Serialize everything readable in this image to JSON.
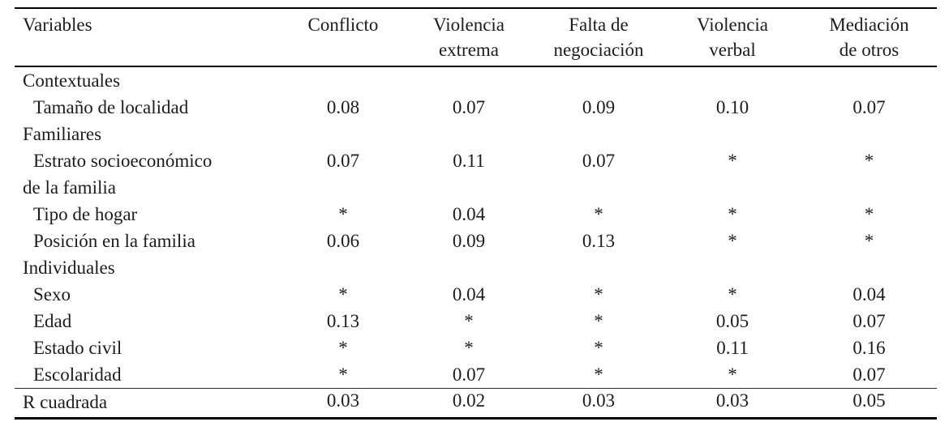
{
  "chart_data": {
    "type": "table",
    "corner_label": "Variables",
    "columns": [
      {
        "line1": "Conflicto",
        "line2": ""
      },
      {
        "line1": "Violencia",
        "line2": "extrema"
      },
      {
        "line1": "Falta de",
        "line2": "negociación"
      },
      {
        "line1": "Violencia",
        "line2": "verbal"
      },
      {
        "line1": "Mediación",
        "line2": "de otros"
      }
    ],
    "rows": [
      {
        "label": "Contextuales",
        "type": "section",
        "values": [
          "",
          "",
          "",
          "",
          ""
        ]
      },
      {
        "label": "Tamaño de localidad",
        "type": "item",
        "values": [
          "0.08",
          "0.07",
          "0.09",
          "0.10",
          "0.07"
        ]
      },
      {
        "label": "Familiares",
        "type": "section",
        "values": [
          "",
          "",
          "",
          "",
          ""
        ]
      },
      {
        "label": "Estrato socioeconómico",
        "label_line2": "de la familia",
        "type": "item",
        "values": [
          "0.07",
          "0.11",
          "0.07",
          "*",
          "*"
        ]
      },
      {
        "label": "Tipo de hogar",
        "type": "item",
        "values": [
          "*",
          "0.04",
          "*",
          "*",
          "*"
        ]
      },
      {
        "label": "Posición en la familia",
        "type": "item",
        "values": [
          "0.06",
          "0.09",
          "0.13",
          "*",
          "*"
        ]
      },
      {
        "label": "Individuales",
        "type": "section",
        "values": [
          "",
          "",
          "",
          "",
          ""
        ]
      },
      {
        "label": "Sexo",
        "type": "item",
        "values": [
          "*",
          "0.04",
          "*",
          "*",
          "0.04"
        ]
      },
      {
        "label": "Edad",
        "type": "item",
        "values": [
          "0.13",
          "*",
          "*",
          "0.05",
          "0.07"
        ]
      },
      {
        "label": "Estado civil",
        "type": "item",
        "values": [
          "*",
          "*",
          "*",
          "0.11",
          "0.16"
        ]
      },
      {
        "label": "Escolaridad",
        "type": "item",
        "values": [
          "*",
          "0.07",
          "*",
          "*",
          "0.07"
        ]
      },
      {
        "label": "R cuadrada",
        "type": "summary",
        "values": [
          "0.03",
          "0.02",
          "0.03",
          "0.03",
          "0.05"
        ]
      }
    ],
    "colors": {
      "text": "#1c1c1c",
      "rule": "#000000",
      "background": "#ffffff"
    }
  }
}
